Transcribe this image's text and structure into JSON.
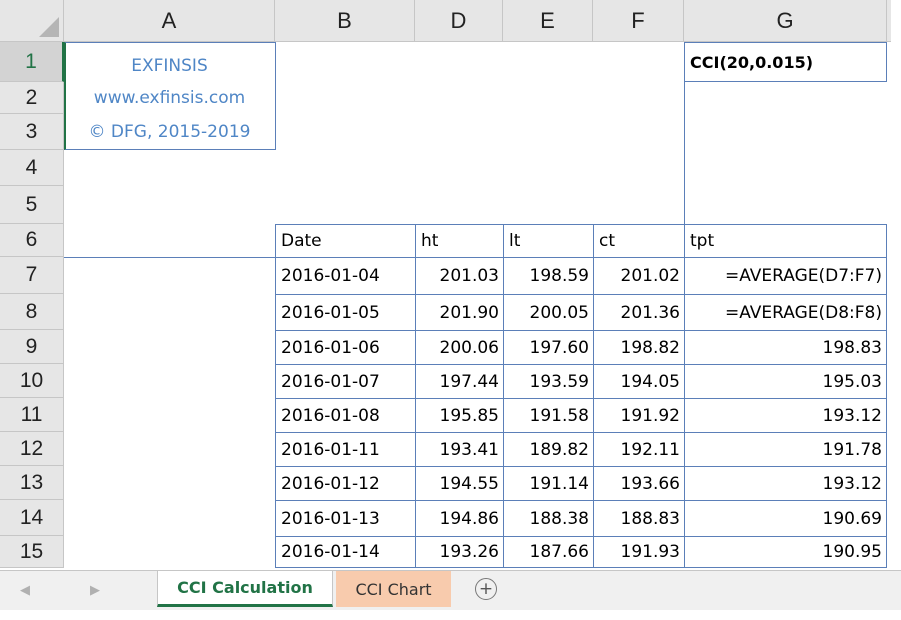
{
  "column_headers": [
    {
      "label": "A"
    },
    {
      "label": "B"
    },
    {
      "label": "D"
    },
    {
      "label": "E"
    },
    {
      "label": "F"
    },
    {
      "label": "G"
    }
  ],
  "row_headers": [
    "1",
    "2",
    "3",
    "4",
    "5",
    "6",
    "7",
    "8",
    "9",
    "10",
    "11",
    "12",
    "13",
    "14",
    "15"
  ],
  "info_box": {
    "line1": "EXFINSIS",
    "line2": "www.exfinsis.com",
    "line3": "© DFG, 2015-2019"
  },
  "indicator_label": "CCI(20,0.015)",
  "table": {
    "headers": [
      "Date",
      "ht",
      "lt",
      "ct",
      "tpt"
    ],
    "rows": [
      [
        "2016-01-04",
        "201.03",
        "198.59",
        "201.02",
        "=AVERAGE(D7:F7)"
      ],
      [
        "2016-01-05",
        "201.90",
        "200.05",
        "201.36",
        "=AVERAGE(D8:F8)"
      ],
      [
        "2016-01-06",
        "200.06",
        "197.60",
        "198.82",
        "198.83"
      ],
      [
        "2016-01-07",
        "197.44",
        "193.59",
        "194.05",
        "195.03"
      ],
      [
        "2016-01-08",
        "195.85",
        "191.58",
        "191.92",
        "193.12"
      ],
      [
        "2016-01-11",
        "193.41",
        "189.82",
        "192.11",
        "191.78"
      ],
      [
        "2016-01-12",
        "194.55",
        "191.14",
        "193.66",
        "193.12"
      ],
      [
        "2016-01-13",
        "194.86",
        "188.38",
        "188.83",
        "190.69"
      ],
      [
        "2016-01-14",
        "193.26",
        "187.66",
        "191.93",
        "190.95"
      ]
    ]
  },
  "tabs": [
    {
      "label": "CCI Calculation",
      "active": true
    },
    {
      "label": "CCI Chart",
      "active": false
    }
  ],
  "icons": {
    "prev_sheet": "chevron-left-icon",
    "next_sheet": "chevron-right-icon",
    "add_sheet": "plus-circle-icon"
  },
  "colors": {
    "accent": "#217346",
    "link_blue": "#4f86c6",
    "table_border": "#5b7fb8",
    "chart_tab": "#f8cbad"
  }
}
